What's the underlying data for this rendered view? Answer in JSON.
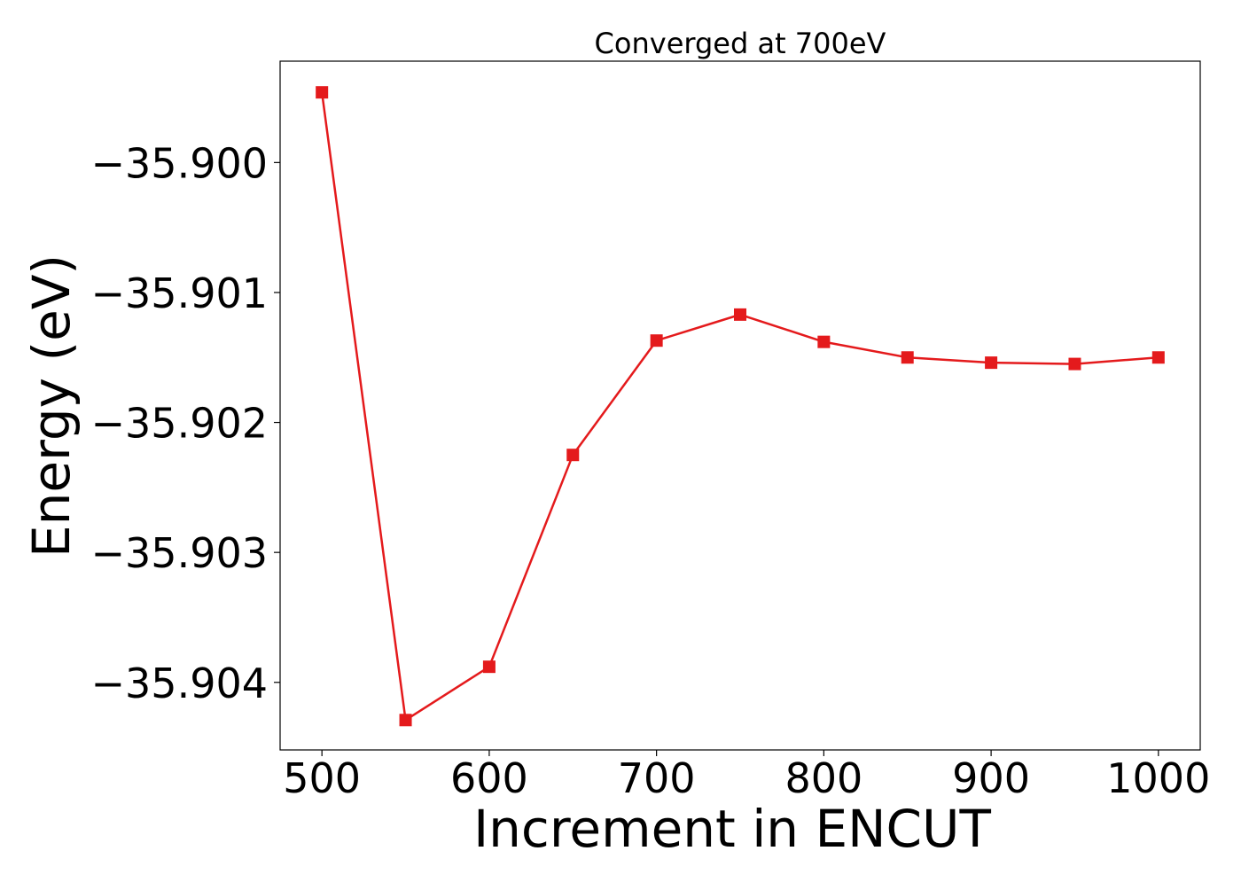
{
  "chart_data": {
    "type": "line",
    "title": "Converged at 700eV",
    "xlabel": "Increment in ENCUT",
    "ylabel": "Energy (eV)",
    "x": [
      500,
      550,
      600,
      650,
      700,
      750,
      800,
      850,
      900,
      950,
      1000
    ],
    "series": [
      {
        "values": [
          -35.89946,
          -35.90429,
          -35.90388,
          -35.90225,
          -35.90137,
          -35.90117,
          -35.90138,
          -35.9015,
          -35.90154,
          -35.90155,
          -35.9015
        ],
        "color": "#e41a1c",
        "marker": "square"
      }
    ],
    "xticks": [
      500,
      600,
      700,
      800,
      900,
      1000
    ],
    "xtick_labels": [
      "500",
      "600",
      "700",
      "800",
      "900",
      "1000"
    ],
    "yticks": [
      -35.9,
      -35.901,
      -35.902,
      -35.903,
      -35.904
    ],
    "ytick_labels": [
      "−35.900",
      "−35.901",
      "−35.902",
      "−35.903",
      "−35.904"
    ],
    "xlim": [
      475,
      1025
    ],
    "ylim": [
      -35.90452,
      -35.89922
    ],
    "grid": false,
    "legend": "none"
  }
}
